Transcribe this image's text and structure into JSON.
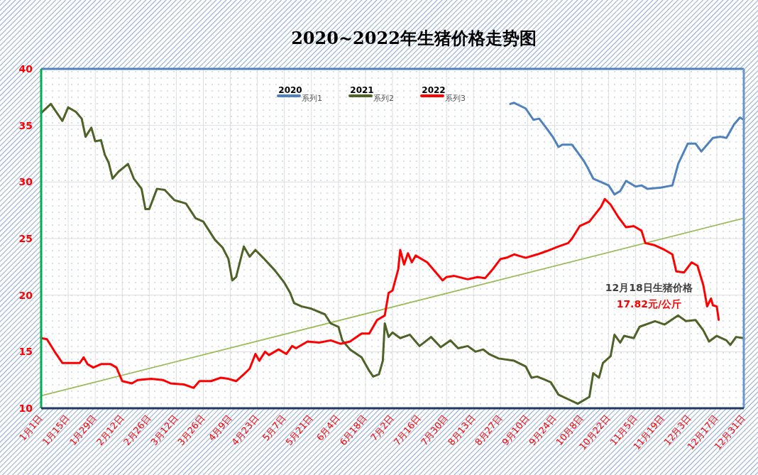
{
  "chart_data": {
    "type": "line",
    "title": "2020~2022年生猪价格走势图",
    "xlim": [
      "--01-01",
      "--12-31"
    ],
    "xticks": [
      {
        "value": "--01-01",
        "label": "1月1日"
      },
      {
        "value": "--01-15",
        "label": "1月15日"
      },
      {
        "value": "--01-29",
        "label": "1月29日"
      },
      {
        "value": "--02-12",
        "label": "2月12日"
      },
      {
        "value": "--02-26",
        "label": "2月26日"
      },
      {
        "value": "--03-12",
        "label": "3月12日"
      },
      {
        "value": "--03-26",
        "label": "3月26日"
      },
      {
        "value": "--04-09",
        "label": "4月9日"
      },
      {
        "value": "--04-23",
        "label": "4月23日"
      },
      {
        "value": "--05-07",
        "label": "5月7日"
      },
      {
        "value": "--05-21",
        "label": "5月21日"
      },
      {
        "value": "--06-04",
        "label": "6月4日"
      },
      {
        "value": "--06-18",
        "label": "6月18日"
      },
      {
        "value": "--07-02",
        "label": "7月2日"
      },
      {
        "value": "--07-16",
        "label": "7月16日"
      },
      {
        "value": "--07-30",
        "label": "7月30日"
      },
      {
        "value": "--08-13",
        "label": "8月13日"
      },
      {
        "value": "--08-27",
        "label": "8月27日"
      },
      {
        "value": "--09-10",
        "label": "9月10日"
      },
      {
        "value": "--09-24",
        "label": "9月24日"
      },
      {
        "value": "--10-08",
        "label": "10月8日"
      },
      {
        "value": "--10-22",
        "label": "10月22日"
      },
      {
        "value": "--11-05",
        "label": "11月5日"
      },
      {
        "value": "--11-19",
        "label": "11月19日"
      },
      {
        "value": "--12-03",
        "label": "12月3日"
      },
      {
        "value": "--12-17",
        "label": "12月17日"
      },
      {
        "value": "--12-31",
        "label": "12月31日"
      }
    ],
    "ylim": [
      10,
      40
    ],
    "yticks": [
      10,
      15,
      20,
      25,
      30,
      35,
      40
    ],
    "grid": true,
    "legend": "top",
    "series": [
      {
        "name": "系列1",
        "color": "#4f81bd",
        "x": [
          "--09-01",
          "--09-03",
          "--09-09",
          "--09-13",
          "--09-16",
          "--09-20",
          "--09-23",
          "--09-26",
          "--09-28",
          "--10-03",
          "--10-06",
          "--10-09",
          "--10-11",
          "--10-14",
          "--10-22",
          "--10-25",
          "--10-28",
          "--10-31",
          "--11-05",
          "--11-08",
          "--11-11",
          "--11-18",
          "--11-24",
          "--11-27",
          "--12-02",
          "--12-06",
          "--12-09",
          "--12-15",
          "--12-19",
          "--12-22",
          "--12-26",
          "--12-29",
          "--12-31"
        ],
        "values": [
          36.9,
          37.0,
          36.5,
          35.5,
          35.6,
          34.7,
          34.0,
          33.1,
          33.3,
          33.3,
          32.6,
          31.9,
          31.3,
          30.3,
          29.7,
          28.9,
          29.2,
          30.1,
          29.6,
          29.7,
          29.4,
          29.5,
          29.7,
          31.6,
          33.4,
          33.4,
          32.7,
          33.9,
          34.0,
          33.9,
          35.1,
          35.7,
          35.5
        ]
      },
      {
        "name": "系列2",
        "color": "#4f6228",
        "x": [
          "--01-01",
          "--01-06",
          "--01-12",
          "--01-15",
          "--01-19",
          "--01-22",
          "--01-24",
          "--01-27",
          "--01-29",
          "--02-01",
          "--02-03",
          "--02-05",
          "--02-07",
          "--02-10",
          "--02-15",
          "--02-18",
          "--02-22",
          "--02-24",
          "--02-26",
          "--03-02",
          "--03-06",
          "--03-11",
          "--03-17",
          "--03-22",
          "--03-26",
          "--04-01",
          "--04-05",
          "--04-08",
          "--04-10",
          "--04-12",
          "--04-16",
          "--04-19",
          "--04-22",
          "--04-26",
          "--05-02",
          "--05-07",
          "--05-10",
          "--05-12",
          "--05-16",
          "--05-21",
          "--05-28",
          "--05-31",
          "--06-04",
          "--06-06",
          "--06-10",
          "--06-16",
          "--06-20",
          "--06-22",
          "--06-25",
          "--06-27",
          "--06-28",
          "--06-30",
          "--07-02",
          "--07-06",
          "--07-11",
          "--07-16",
          "--07-22",
          "--07-27",
          "--08-01",
          "--08-05",
          "--08-10",
          "--08-14",
          "--08-18",
          "--08-21",
          "--08-26",
          "--09-03",
          "--09-09",
          "--09-12",
          "--09-15",
          "--09-22",
          "--09-26",
          "--10-01",
          "--10-06",
          "--10-12",
          "--10-14",
          "--10-17",
          "--10-19",
          "--10-23",
          "--10-25",
          "--10-28",
          "--10-30",
          "--11-04",
          "--11-07",
          "--11-15",
          "--11-20",
          "--11-27",
          "--12-01",
          "--12-06",
          "--12-10",
          "--12-13",
          "--12-17",
          "--12-22",
          "--12-24",
          "--12-27",
          "--12-31"
        ],
        "values": [
          36.1,
          36.9,
          35.4,
          36.6,
          36.2,
          35.6,
          34.0,
          34.8,
          33.6,
          33.7,
          32.4,
          31.7,
          30.3,
          30.9,
          31.6,
          30.3,
          29.4,
          27.6,
          27.6,
          29.4,
          29.3,
          28.4,
          28.1,
          26.8,
          26.5,
          24.9,
          24.2,
          23.2,
          21.3,
          21.6,
          24.3,
          23.4,
          24.0,
          23.3,
          22.2,
          21.1,
          20.2,
          19.3,
          19.0,
          18.8,
          18.3,
          17.5,
          17.2,
          16.0,
          15.2,
          14.5,
          13.3,
          12.8,
          13.0,
          14.2,
          17.5,
          16.3,
          16.7,
          16.2,
          16.5,
          15.5,
          16.3,
          15.4,
          16.0,
          15.3,
          15.5,
          15.0,
          15.2,
          14.8,
          14.4,
          14.2,
          13.7,
          12.7,
          12.8,
          12.3,
          11.2,
          10.8,
          10.4,
          11.0,
          13.1,
          12.7,
          14.0,
          14.6,
          16.5,
          15.8,
          16.4,
          16.2,
          17.2,
          17.7,
          17.4,
          18.2,
          17.7,
          17.8,
          16.9,
          15.9,
          16.4,
          16.0,
          15.6,
          16.3,
          16.2
        ]
      },
      {
        "name": "系列3",
        "color": "#ff0000",
        "x": [
          "--01-01",
          "--01-04",
          "--01-08",
          "--01-12",
          "--01-16",
          "--01-21",
          "--01-23",
          "--01-25",
          "--01-28",
          "--02-01",
          "--02-06",
          "--02-09",
          "--02-12",
          "--02-17",
          "--02-20",
          "--02-27",
          "--03-05",
          "--03-09",
          "--03-16",
          "--03-21",
          "--03-24",
          "--03-30",
          "--04-04",
          "--04-08",
          "--04-12",
          "--04-16",
          "--04-19",
          "--04-22",
          "--04-24",
          "--04-27",
          "--04-29",
          "--05-04",
          "--05-08",
          "--05-11",
          "--05-13",
          "--05-19",
          "--05-25",
          "--05-31",
          "--06-05",
          "--06-10",
          "--06-16",
          "--06-20",
          "--06-24",
          "--06-28",
          "--06-30",
          "--07-02",
          "--07-05",
          "--07-06",
          "--07-08",
          "--07-10",
          "--07-12",
          "--07-14",
          "--07-20",
          "--07-28",
          "--07-30",
          "--08-03",
          "--08-10",
          "--08-15",
          "--08-19",
          "--08-23",
          "--08-27",
          "--08-30",
          "--09-03",
          "--09-05",
          "--09-09",
          "--09-15",
          "--09-20",
          "--09-26",
          "--10-01",
          "--10-03",
          "--10-07",
          "--10-12",
          "--10-18",
          "--10-20",
          "--10-23",
          "--10-27",
          "--10-31",
          "--11-04",
          "--11-08",
          "--11-10",
          "--11-15",
          "--11-20",
          "--11-24",
          "--11-26",
          "--11-30",
          "--12-04",
          "--12-07",
          "--12-10",
          "--12-12",
          "--12-14",
          "--12-15",
          "--12-17",
          "--12-18"
        ],
        "values": [
          16.2,
          16.1,
          15.0,
          14.0,
          14.0,
          14.0,
          14.5,
          13.9,
          13.6,
          13.9,
          13.9,
          13.6,
          12.4,
          12.2,
          12.5,
          12.6,
          12.5,
          12.2,
          12.1,
          11.8,
          12.4,
          12.4,
          12.7,
          12.6,
          12.4,
          13.0,
          13.5,
          14.8,
          14.2,
          15.0,
          14.7,
          15.2,
          14.8,
          15.5,
          15.3,
          15.9,
          15.8,
          16.0,
          15.7,
          15.9,
          16.6,
          16.6,
          17.8,
          18.2,
          20.2,
          20.4,
          22.3,
          24.0,
          22.7,
          23.7,
          22.9,
          23.5,
          22.9,
          21.3,
          21.6,
          21.7,
          21.4,
          21.6,
          21.5,
          22.3,
          23.2,
          23.3,
          23.6,
          23.5,
          23.3,
          23.6,
          23.9,
          24.3,
          24.6,
          25.0,
          26.1,
          26.5,
          27.8,
          28.5,
          28.0,
          26.9,
          26.0,
          26.1,
          25.7,
          24.6,
          24.4,
          24.0,
          23.6,
          22.1,
          22.0,
          22.9,
          22.6,
          20.9,
          19.0,
          19.7,
          19.1,
          19.0,
          17.82
        ]
      },
      {
        "type": "line",
        "color": "#9bbb59",
        "x": [
          "--01-01",
          "--12-31"
        ],
        "values": [
          11.1,
          26.8
        ]
      }
    ],
    "annotations": [
      "2020",
      "2021",
      "2022",
      "12月18日生猪价格",
      "17.82元/公斤"
    ]
  }
}
